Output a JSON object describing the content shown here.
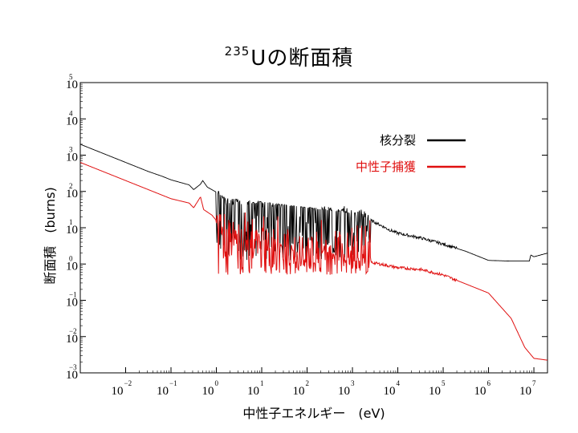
{
  "title": {
    "superscript": "235",
    "text": "Uの断面積"
  },
  "chart_data": {
    "type": "line",
    "title": "235Uの断面積",
    "xlabel": "中性子エネルギー　(eV)",
    "ylabel": "断面積　(burns)",
    "xscale": "log",
    "yscale": "log",
    "xlim_exp": [
      -3,
      7.3
    ],
    "ylim_exp": [
      -3,
      5
    ],
    "x_ticks": [
      {
        "base": "10",
        "exp": "−2",
        "value": -2
      },
      {
        "base": "10",
        "exp": "−1",
        "value": -1
      },
      {
        "base": "10",
        "exp": "0",
        "value": 0
      },
      {
        "base": "10",
        "exp": "1",
        "value": 1
      },
      {
        "base": "10",
        "exp": "2",
        "value": 2
      },
      {
        "base": "10",
        "exp": "3",
        "value": 3
      },
      {
        "base": "10",
        "exp": "4",
        "value": 4
      },
      {
        "base": "10",
        "exp": "5",
        "value": 5
      },
      {
        "base": "10",
        "exp": "6",
        "value": 6
      },
      {
        "base": "10",
        "exp": "7",
        "value": 7
      }
    ],
    "y_ticks": [
      {
        "base": "10",
        "exp": "5",
        "value": 5
      },
      {
        "base": "10",
        "exp": "4",
        "value": 4
      },
      {
        "base": "10",
        "exp": "3",
        "value": 3
      },
      {
        "base": "10",
        "exp": "2",
        "value": 2
      },
      {
        "base": "10",
        "exp": "1",
        "value": 1
      },
      {
        "base": "10",
        "exp": "0",
        "value": 0
      },
      {
        "base": "10",
        "exp": "−1",
        "value": -1
      },
      {
        "base": "10",
        "exp": "−2",
        "value": -2
      },
      {
        "base": "10",
        "exp": "−3",
        "value": -3
      }
    ],
    "legend": {
      "placement": "top-right"
    },
    "series": [
      {
        "name": "核分裂",
        "color": "#000000",
        "log_points": [
          [
            -3,
            3.3
          ],
          [
            -2.5,
            3.05
          ],
          [
            -2,
            2.8
          ],
          [
            -1.5,
            2.55
          ],
          [
            -1.2,
            2.42
          ],
          [
            -1,
            2.32
          ],
          [
            -0.6,
            2.18
          ],
          [
            -0.5,
            2.05
          ],
          [
            -0.35,
            2.2
          ],
          [
            -0.3,
            2.3
          ],
          [
            -0.2,
            2.12
          ],
          [
            0,
            1.98
          ],
          [
            0.03,
            2.25
          ],
          [
            0.06,
            1.95
          ],
          [
            0.2,
            1.82
          ],
          [
            0.5,
            1.78
          ],
          [
            1,
            1.72
          ],
          [
            2,
            1.55
          ],
          [
            3,
            1.4
          ],
          [
            3.5,
            1.15
          ],
          [
            3.8,
            0.95
          ],
          [
            4,
            0.85
          ],
          [
            4.5,
            0.72
          ],
          [
            5,
            0.55
          ],
          [
            5.5,
            0.35
          ],
          [
            6,
            0.1
          ],
          [
            6.5,
            0.08
          ],
          [
            6.9,
            0.08
          ],
          [
            6.93,
            0.25
          ],
          [
            7,
            0.2
          ],
          [
            7.3,
            0.3
          ]
        ],
        "resonance_band_exp": [
          0.0,
          3.4
        ],
        "resonance_band_sigma_exp": [
          0.1,
          1.6
        ]
      },
      {
        "name": "中性子捕獲",
        "color": "#e01010",
        "log_points": [
          [
            -3,
            2.8
          ],
          [
            -2.5,
            2.55
          ],
          [
            -2,
            2.3
          ],
          [
            -1.5,
            2.05
          ],
          [
            -1,
            1.8
          ],
          [
            -0.6,
            1.68
          ],
          [
            -0.5,
            1.55
          ],
          [
            -0.35,
            1.85
          ],
          [
            -0.28,
            1.5
          ],
          [
            -0.1,
            1.35
          ],
          [
            0.0,
            1.2
          ],
          [
            0.05,
            1.7
          ],
          [
            0.1,
            0.8
          ],
          [
            0.5,
            0.72
          ],
          [
            1,
            0.6
          ],
          [
            2,
            0.35
          ],
          [
            3,
            0.2
          ],
          [
            3.4,
            0.05
          ],
          [
            3.6,
            0.0
          ],
          [
            4,
            -0.1
          ],
          [
            4.5,
            -0.15
          ],
          [
            5,
            -0.3
          ],
          [
            5.5,
            -0.55
          ],
          [
            6,
            -0.8
          ],
          [
            6.5,
            -1.5
          ],
          [
            6.8,
            -2.3
          ],
          [
            7,
            -2.6
          ],
          [
            7.3,
            -2.65
          ]
        ],
        "resonance_band_exp": [
          0.0,
          3.4
        ],
        "resonance_band_sigma_exp": [
          -0.3,
          1.6
        ]
      }
    ]
  }
}
